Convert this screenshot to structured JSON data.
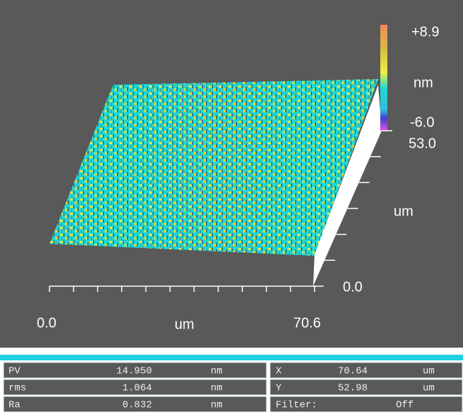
{
  "plot": {
    "colorbar": {
      "max": "+8.9",
      "unit": "nm",
      "min": "-6.0"
    },
    "y_axis": {
      "max": "53.0",
      "unit": "um",
      "min": "0.0"
    },
    "x_axis": {
      "min": "0.0",
      "unit": "um",
      "max": "70.6"
    }
  },
  "stats": {
    "left": [
      [
        "PV",
        "14.950",
        "nm"
      ],
      [
        "rms",
        "1.064",
        "nm"
      ],
      [
        "Ra",
        "0.832",
        "nm"
      ]
    ],
    "right": [
      [
        "X",
        "70.64",
        "um"
      ],
      [
        "Y",
        "52.98",
        "um"
      ],
      [
        "Filter:",
        "Off"
      ]
    ]
  }
}
